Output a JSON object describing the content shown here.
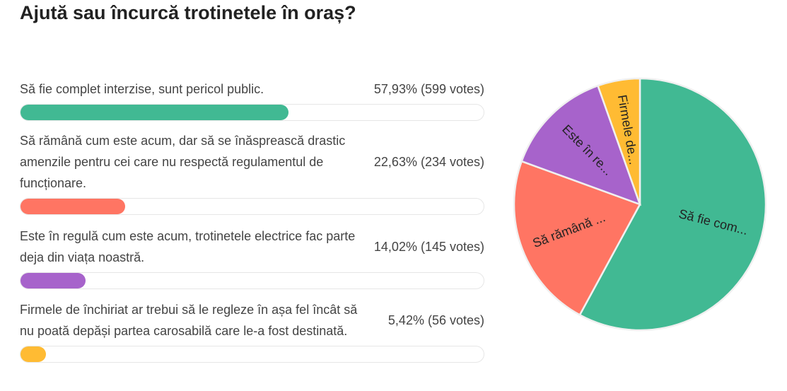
{
  "title": "Ajută sau încurcă trotinetele în oraș?",
  "options": [
    {
      "label": "Să fie complet interzise, sunt pericol public.",
      "pct_text": "57,93% (599 votes)",
      "percent": 57.93,
      "votes": 599,
      "color": "#41b993",
      "pie_label": "Să fie com..."
    },
    {
      "label": "Să rămână cum este acum, dar să se înăsprească drastic amenzile pentru cei care nu respectă regulamentul de funcționare.",
      "pct_text": "22,63% (234 votes)",
      "percent": 22.63,
      "votes": 234,
      "color": "#ff7563",
      "pie_label": "Să rămână ..."
    },
    {
      "label": "Este în regulă cum este acum, trotinetele electrice fac parte deja din viața noastră.",
      "pct_text": "14,02% (145 votes)",
      "percent": 14.02,
      "votes": 145,
      "color": "#a763cb",
      "pie_label": "Este în re..."
    },
    {
      "label": "Firmele de închiriat ar trebui să le regleze în așa fel încât să nu poată depăși partea carosabilă care le-a fost destinată.",
      "pct_text": "5,42% (56 votes)",
      "percent": 5.42,
      "votes": 56,
      "color": "#ffbb33",
      "pie_label": "Firmele de..."
    }
  ],
  "chart_data": {
    "type": "pie",
    "title": "Ajută sau încurcă trotinetele în oraș?",
    "categories": [
      "Să fie com...",
      "Să rămână ...",
      "Este în re...",
      "Firmele de..."
    ],
    "values": [
      57.93,
      22.63,
      14.02,
      5.42
    ],
    "votes": [
      599,
      234,
      145,
      56
    ]
  }
}
